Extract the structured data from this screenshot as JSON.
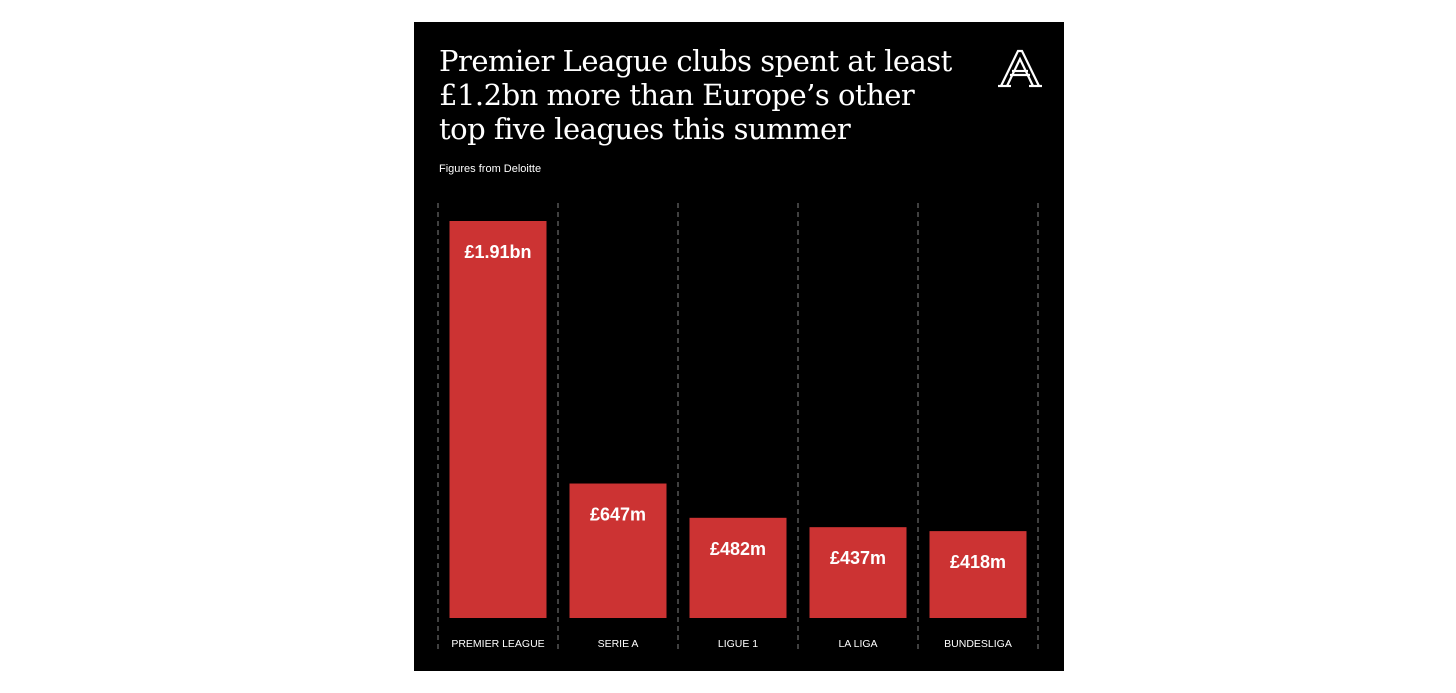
{
  "title": "Premier League clubs spent at least £1.2bn more than Europe’s other top five leagues this summer",
  "subtitle": "Figures from Deloitte",
  "logo_icon": "athletic-a-logo",
  "colors": {
    "background": "#000000",
    "bar": "#cc3333",
    "text": "#ffffff",
    "divider": "#6b6b6b"
  },
  "chart_data": {
    "type": "bar",
    "title": "Premier League clubs spent at least £1.2bn more than Europe’s other top five leagues this summer",
    "subtitle": "Figures from Deloitte",
    "categories": [
      "PREMIER LEAGUE",
      "SERIE A",
      "LIGUE 1",
      "LA LIGA",
      "BUNDESLIGA"
    ],
    "values": [
      1910,
      647,
      482,
      437,
      418
    ],
    "unit": "£m",
    "labels": [
      "£1.91bn",
      "£647m",
      "£482m",
      "£437m",
      "£418m"
    ],
    "xlabel": "",
    "ylabel": "",
    "ylim": [
      0,
      1910
    ],
    "grid": false,
    "legend": "none"
  }
}
